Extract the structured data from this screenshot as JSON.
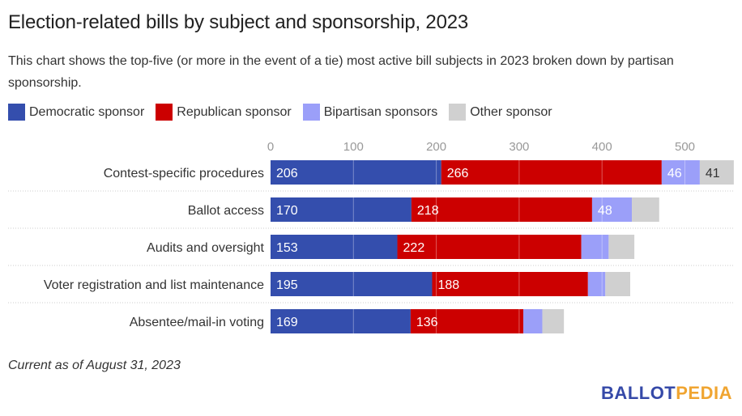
{
  "title": "Election-related bills by subject and sponsorship, 2023",
  "subtitle": "This chart shows the top-five (or more in the event of a tie) most active bill subjects in 2023 broken down by partisan sponsorship.",
  "footnote": "Current as of August 31, 2023",
  "logo": {
    "part1": "BALLOT",
    "part2": "PEDIA",
    "color1": "#3549a8",
    "color2": "#f0a531"
  },
  "chart_data": {
    "type": "bar",
    "orientation": "horizontal",
    "stacked": true,
    "title": "Election-related bills by subject and sponsorship, 2023",
    "xlabel": "",
    "ylabel": "",
    "xlim": [
      0,
      560
    ],
    "xticks": [
      0,
      100,
      200,
      300,
      400,
      500
    ],
    "grid": true,
    "legend_position": "top-left",
    "categories": [
      "Contest-specific procedures",
      "Ballot access",
      "Audits and oversight",
      "Voter registration and list maintenance",
      "Absentee/mail-in voting"
    ],
    "series": [
      {
        "name": "Democratic sponsor",
        "color": "#344ead",
        "label_color": "#ffffff",
        "values": [
          206,
          170,
          153,
          195,
          169
        ],
        "show_labels": [
          true,
          true,
          true,
          true,
          true
        ]
      },
      {
        "name": "Republican sponsor",
        "color": "#cc0000",
        "label_color": "#ffffff",
        "values": [
          266,
          218,
          222,
          188,
          136
        ],
        "show_labels": [
          true,
          true,
          true,
          true,
          true
        ]
      },
      {
        "name": "Bipartisan sponsors",
        "color": "#9b9ff9",
        "label_color": "#ffffff",
        "values": [
          46,
          48,
          33,
          21,
          23
        ],
        "show_labels": [
          true,
          true,
          false,
          false,
          false
        ]
      },
      {
        "name": "Other sponsor",
        "color": "#d0d0d0",
        "label_color": "#333333",
        "values": [
          41,
          33,
          31,
          30,
          26
        ],
        "show_labels": [
          true,
          false,
          false,
          false,
          false
        ]
      }
    ]
  }
}
